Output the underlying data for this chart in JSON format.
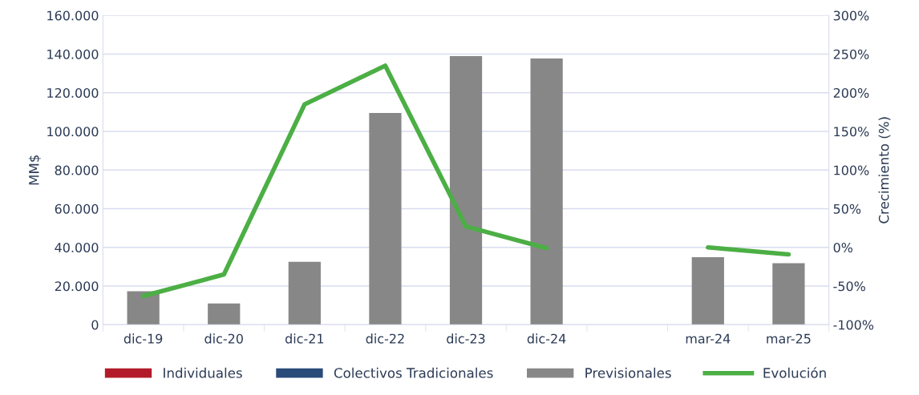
{
  "chart_data": {
    "type": "bar",
    "categories": [
      "dic-19",
      "dic-20",
      "dic-21",
      "dic-22",
      "dic-23",
      "dic-24",
      null,
      "mar-24",
      "mar-25"
    ],
    "series": [
      {
        "name": "Individuales",
        "color": "#b31b2a",
        "values": [
          0,
          0,
          0,
          0,
          0,
          0,
          null,
          0,
          0
        ]
      },
      {
        "name": "Colectivos Tradicionales",
        "color": "#2a4a7a",
        "values": [
          0,
          0,
          0,
          0,
          0,
          0,
          null,
          0,
          0
        ]
      },
      {
        "name": "Previsionales",
        "color": "#878787",
        "values": [
          17300,
          11000,
          32500,
          109500,
          139000,
          137700,
          null,
          34900,
          31800
        ]
      },
      {
        "name": "Evolución",
        "color": "#4caf45",
        "type": "line",
        "axis": "y2",
        "values": [
          -63,
          -35,
          185,
          235,
          27,
          -1,
          null,
          0,
          -9
        ]
      }
    ],
    "ylabel": "MM$",
    "y2label": "Crecimiento (%)",
    "ylim": [
      0,
      160000
    ],
    "yticks": [
      {
        "value": 0,
        "label": "0"
      },
      {
        "value": 20000,
        "label": "20.000"
      },
      {
        "value": 40000,
        "label": "40.000"
      },
      {
        "value": 60000,
        "label": "60.000"
      },
      {
        "value": 80000,
        "label": "80.000"
      },
      {
        "value": 100000,
        "label": "100.000"
      },
      {
        "value": 120000,
        "label": "120.000"
      },
      {
        "value": 140000,
        "label": "140.000"
      },
      {
        "value": 160000,
        "label": "160.000"
      }
    ],
    "y2lim": [
      -100,
      300
    ],
    "y2ticks": [
      {
        "value": -100,
        "label": "-100%"
      },
      {
        "value": -50,
        "label": "-50%"
      },
      {
        "value": 0,
        "label": "0%"
      },
      {
        "value": 50,
        "label": "50%"
      },
      {
        "value": 100,
        "label": "100%"
      },
      {
        "value": 150,
        "label": "150%"
      },
      {
        "value": 200,
        "label": "200%"
      },
      {
        "value": 250,
        "label": "250%"
      },
      {
        "value": 300,
        "label": "300%"
      }
    ],
    "grid": "y",
    "legend": "bottom"
  }
}
